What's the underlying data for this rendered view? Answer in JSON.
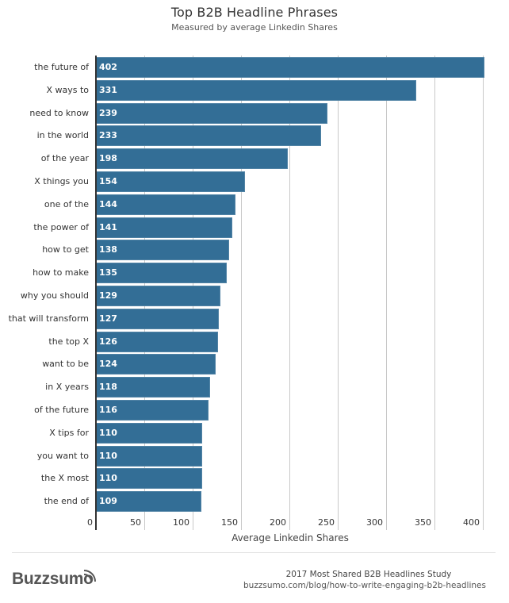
{
  "header": {
    "title": "Top B2B Headline Phrases",
    "subtitle": "Measured by average Linkedin Shares"
  },
  "chart_data": {
    "type": "bar",
    "orientation": "horizontal",
    "title": "Top B2B Headline Phrases",
    "subtitle": "Measured by average Linkedin Shares",
    "xlabel": "Average Linkedin Shares",
    "ylabel": "",
    "xlim": [
      0,
      400
    ],
    "xticks": [
      "0",
      "50",
      "100",
      "150",
      "200",
      "250",
      "300",
      "350",
      "400"
    ],
    "grid": true,
    "legend": "none",
    "bar_color": "#336e96",
    "categories": [
      "the future of",
      "X ways to",
      "need to know",
      "in the world",
      "of the year",
      "X things you",
      "one of the",
      "the power of",
      "how to get",
      "how to make",
      "why you should",
      "that will transform",
      "the top X",
      "want to be",
      "in X years",
      "of the future",
      "X tips for",
      "you want to",
      "the X most",
      "the end of"
    ],
    "values": [
      402,
      331,
      239,
      233,
      198,
      154,
      144,
      141,
      138,
      135,
      129,
      127,
      126,
      124,
      118,
      116,
      110,
      110,
      110,
      109
    ],
    "value_labels": [
      "402",
      "331",
      "239",
      "233",
      "198",
      "154",
      "144",
      "141",
      "138",
      "135",
      "129",
      "127",
      "126",
      "124",
      "118",
      "116",
      "110",
      "110",
      "110",
      "109"
    ]
  },
  "footer": {
    "brand": "Buzzsumo",
    "study_title": "2017 Most Shared B2B Headlines Study",
    "url": "buzzsumo.com/blog/how-to-write-engaging-b2b-headlines"
  }
}
